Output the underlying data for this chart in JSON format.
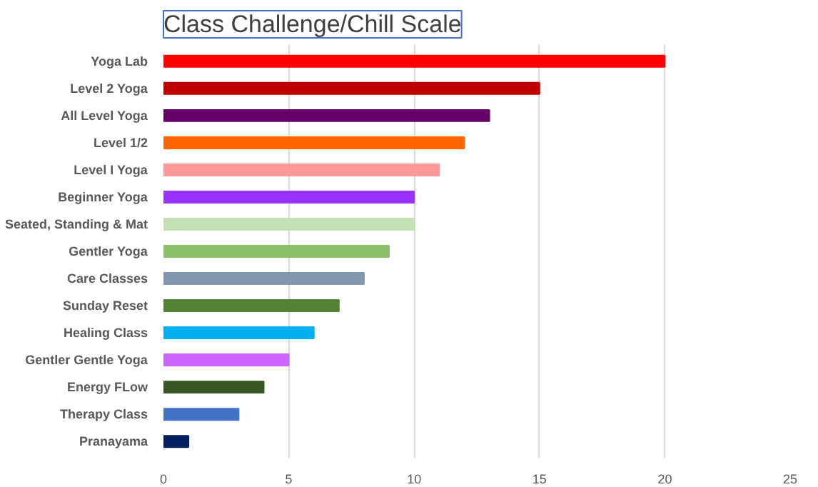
{
  "chart_data": {
    "type": "bar",
    "orientation": "horizontal",
    "title": "Class Challenge/Chill Scale",
    "categories": [
      "Yoga Lab",
      "Level 2 Yoga",
      "All Level Yoga",
      "Level 1/2",
      "Level I Yoga",
      "Beginner Yoga",
      "Seated, Standing & Mat",
      "Gentler Yoga",
      "Care Classes",
      "Sunday Reset",
      "Healing Class",
      "Gentler Gentle Yoga",
      "Energy FLow",
      "Therapy Class",
      "Pranayama"
    ],
    "values": [
      20,
      15,
      13,
      12,
      11,
      10,
      10,
      9,
      8,
      7,
      6,
      5,
      4,
      3,
      1
    ],
    "colors": [
      "#ff0000",
      "#c00000",
      "#660066",
      "#ff6600",
      "#ff9999",
      "#9933ff",
      "#c5e0b4",
      "#8dc06a",
      "#8497b0",
      "#548235",
      "#00b0f0",
      "#cc66ff",
      "#375623",
      "#4472c4",
      "#002060"
    ],
    "xlim": [
      0,
      25
    ],
    "xticks": [
      0,
      5,
      10,
      15,
      20,
      25
    ],
    "grid": "x"
  }
}
